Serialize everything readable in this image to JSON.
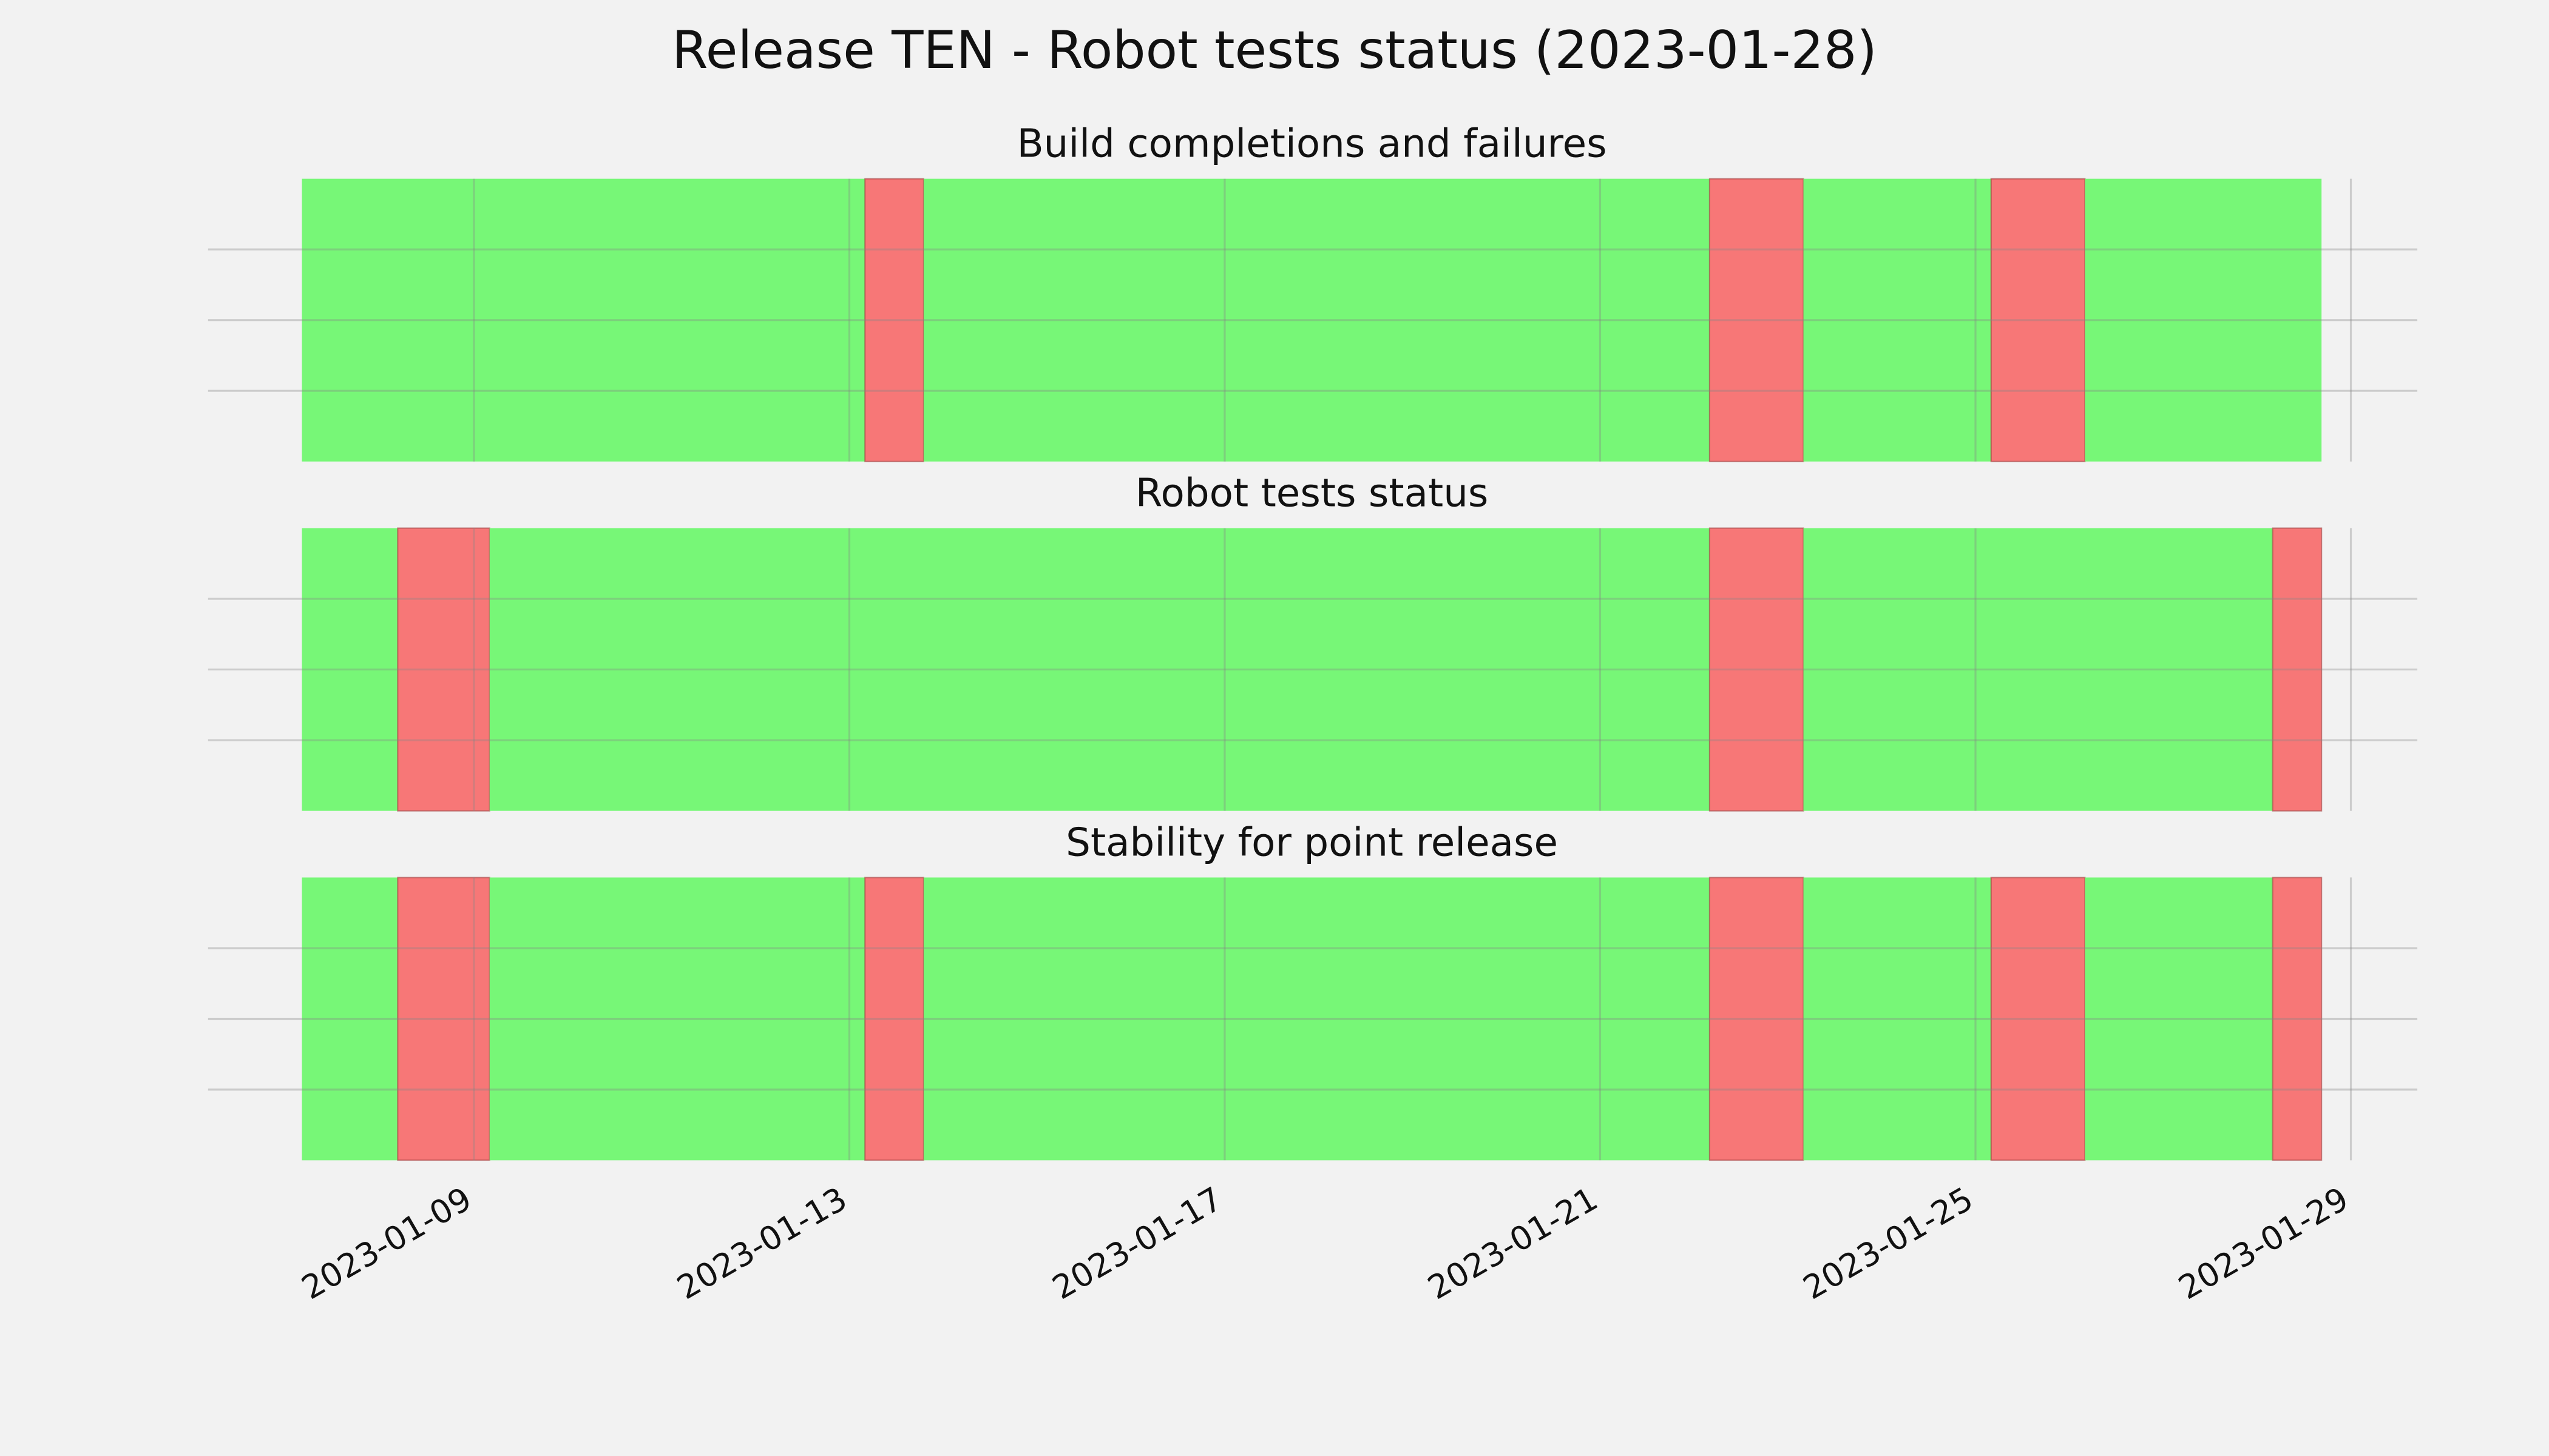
{
  "title": "Release TEN - Robot tests status (2023-01-28)",
  "chart_data": [
    {
      "type": "span",
      "title": "Build completions and failures",
      "xlim": [
        "2023-01-06T04:00",
        "2023-01-29T17:00"
      ],
      "ylim": [
        0,
        1
      ],
      "yticks": [
        0.25,
        0.5,
        0.75
      ],
      "xticks": [
        "2023-01-09",
        "2023-01-13",
        "2023-01-17",
        "2023-01-21",
        "2023-01-25",
        "2023-01-29"
      ],
      "show_xtick_labels": false,
      "grid": true,
      "spans": [
        {
          "start": "2023-01-07T04:00",
          "end": "2023-01-13T04:00",
          "color": "#77f777"
        },
        {
          "start": "2023-01-13T04:00",
          "end": "2023-01-13T19:00",
          "color": "#f77777"
        },
        {
          "start": "2023-01-13T19:00",
          "end": "2023-01-22T04:00",
          "color": "#77f777"
        },
        {
          "start": "2023-01-22T04:00",
          "end": "2023-01-23T04:00",
          "color": "#f77777"
        },
        {
          "start": "2023-01-23T04:00",
          "end": "2023-01-25T04:00",
          "color": "#77f777"
        },
        {
          "start": "2023-01-25T04:00",
          "end": "2023-01-26T04:00",
          "color": "#f77777"
        },
        {
          "start": "2023-01-26T04:00",
          "end": "2023-01-28T16:30",
          "color": "#77f777"
        }
      ]
    },
    {
      "type": "span",
      "title": "Robot tests status",
      "xlim": [
        "2023-01-06T04:00",
        "2023-01-29T17:00"
      ],
      "ylim": [
        0,
        1
      ],
      "yticks": [
        0.25,
        0.5,
        0.75
      ],
      "xticks": [
        "2023-01-09",
        "2023-01-13",
        "2023-01-17",
        "2023-01-21",
        "2023-01-25",
        "2023-01-29"
      ],
      "show_xtick_labels": false,
      "grid": true,
      "spans": [
        {
          "start": "2023-01-07T04:00",
          "end": "2023-01-08T04:30",
          "color": "#77f777"
        },
        {
          "start": "2023-01-08T04:30",
          "end": "2023-01-09T04:00",
          "color": "#f77777"
        },
        {
          "start": "2023-01-09T04:00",
          "end": "2023-01-22T04:00",
          "color": "#77f777"
        },
        {
          "start": "2023-01-22T04:00",
          "end": "2023-01-23T04:00",
          "color": "#f77777"
        },
        {
          "start": "2023-01-23T04:00",
          "end": "2023-01-28T04:00",
          "color": "#77f777"
        },
        {
          "start": "2023-01-28T04:00",
          "end": "2023-01-28T16:30",
          "color": "#f77777"
        }
      ]
    },
    {
      "type": "span",
      "title": "Stability for point release",
      "xlim": [
        "2023-01-06T04:00",
        "2023-01-29T17:00"
      ],
      "ylim": [
        0,
        1
      ],
      "yticks": [
        0.25,
        0.5,
        0.75
      ],
      "xticks": [
        "2023-01-09",
        "2023-01-13",
        "2023-01-17",
        "2023-01-21",
        "2023-01-25",
        "2023-01-29"
      ],
      "show_xtick_labels": true,
      "grid": true,
      "spans": [
        {
          "start": "2023-01-07T04:00",
          "end": "2023-01-08T04:30",
          "color": "#77f777"
        },
        {
          "start": "2023-01-08T04:30",
          "end": "2023-01-09T04:00",
          "color": "#f77777"
        },
        {
          "start": "2023-01-09T04:00",
          "end": "2023-01-13T04:00",
          "color": "#77f777"
        },
        {
          "start": "2023-01-13T04:00",
          "end": "2023-01-13T19:00",
          "color": "#f77777"
        },
        {
          "start": "2023-01-13T19:00",
          "end": "2023-01-22T04:00",
          "color": "#77f777"
        },
        {
          "start": "2023-01-22T04:00",
          "end": "2023-01-23T04:00",
          "color": "#f77777"
        },
        {
          "start": "2023-01-23T04:00",
          "end": "2023-01-25T04:00",
          "color": "#77f777"
        },
        {
          "start": "2023-01-25T04:00",
          "end": "2023-01-26T04:00",
          "color": "#f77777"
        },
        {
          "start": "2023-01-26T04:00",
          "end": "2023-01-28T04:00",
          "color": "#77f777"
        },
        {
          "start": "2023-01-28T04:00",
          "end": "2023-01-28T16:30",
          "color": "#f77777"
        }
      ]
    }
  ]
}
